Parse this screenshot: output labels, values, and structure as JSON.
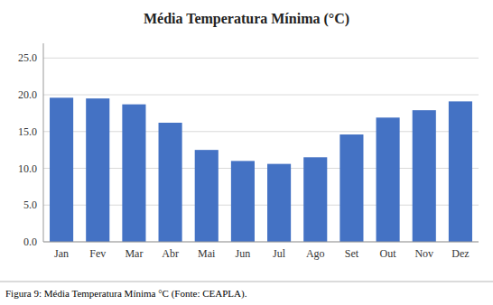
{
  "chart_data": {
    "type": "bar",
    "title": "Média Temperatura Mínima (°C)",
    "categories": [
      "Jan",
      "Fev",
      "Mar",
      "Abr",
      "Mai",
      "Jun",
      "Jul",
      "Ago",
      "Set",
      "Out",
      "Nov",
      "Dez"
    ],
    "values": [
      19.6,
      19.5,
      18.7,
      16.2,
      12.5,
      11.0,
      10.6,
      11.5,
      14.6,
      16.9,
      17.9,
      19.1
    ],
    "color": "#4472C4",
    "ylim": [
      0,
      27
    ],
    "yticks": [
      {
        "value": 0.0,
        "label": "0.0"
      },
      {
        "value": 5.0,
        "label": "5.0"
      },
      {
        "value": 10.0,
        "label": "10.0"
      },
      {
        "value": 15.0,
        "label": "15.0"
      },
      {
        "value": 20.0,
        "label": "20.0"
      },
      {
        "value": 25.0,
        "label": "25.0"
      }
    ],
    "grid": true,
    "caption": "Figura 9: Média Temperatura Mínima °C (Fonte: CEAPLA)."
  }
}
